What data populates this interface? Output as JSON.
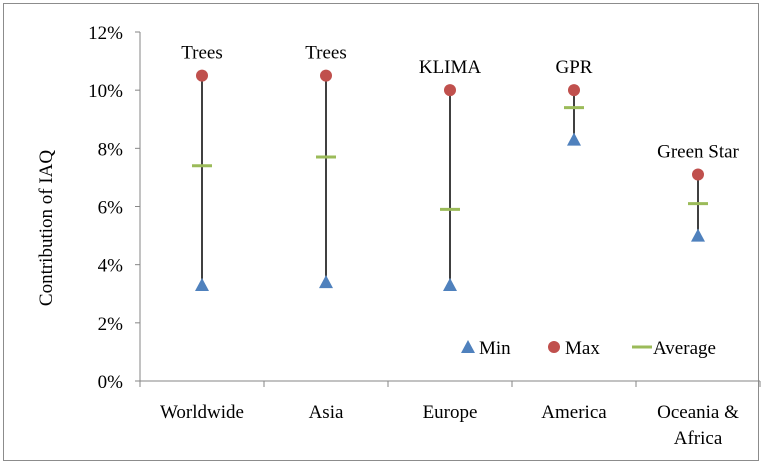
{
  "chart_data": {
    "type": "scatter",
    "title": "",
    "xlabel": "",
    "ylabel": "Contribution  of IAQ",
    "ylim": [
      0,
      12
    ],
    "yticks": [
      0,
      2,
      4,
      6,
      8,
      10,
      12
    ],
    "ytick_labels": [
      "0%",
      "2%",
      "4%",
      "6%",
      "8%",
      "10%",
      "12%"
    ],
    "grid": false,
    "legend_position": "bottom-right",
    "categories": [
      "Worldwide",
      "Asia",
      "Europe",
      "America",
      "Oceania & Africa"
    ],
    "category_lines": [
      [
        "Worldwide"
      ],
      [
        "Asia"
      ],
      [
        "Europe"
      ],
      [
        "America"
      ],
      [
        "Oceania &",
        "Africa"
      ]
    ],
    "annotations": [
      "Trees",
      "Trees",
      "KLIMA",
      "GPR",
      "Green Star"
    ],
    "series": [
      {
        "name": "Min",
        "marker": "triangle",
        "color": "#4f81bd",
        "values": [
          3.3,
          3.4,
          3.3,
          8.3,
          5.0
        ]
      },
      {
        "name": "Max",
        "marker": "circle",
        "color": "#c0504d",
        "values": [
          10.5,
          10.5,
          10.0,
          10.0,
          7.1
        ]
      },
      {
        "name": "Average",
        "marker": "dash",
        "color": "#9bbb59",
        "values": [
          7.4,
          7.7,
          5.9,
          9.4,
          6.1
        ]
      }
    ],
    "range_line_color": "#000000"
  }
}
